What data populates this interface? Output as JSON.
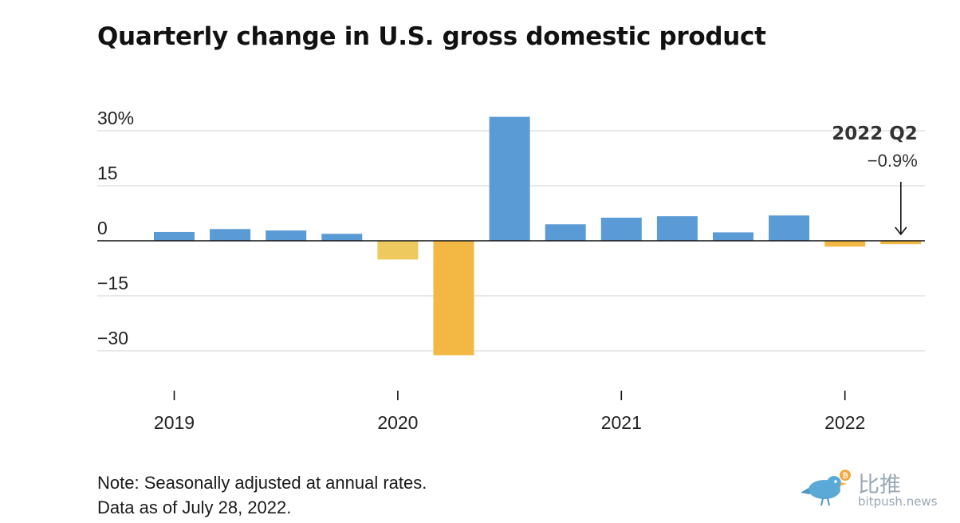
{
  "title": "Quarterly change in U.S. gross domestic product",
  "note_line1": "Note: Seasonally adjusted at annual rates.",
  "note_line2": "Data as of July 28, 2022.",
  "watermark": {
    "brand_text": "比推",
    "domain": "bitpush.news",
    "icon": "bird-bitcoin-icon"
  },
  "colors": {
    "positive": "#5b9bd5",
    "negative": "#f2b843",
    "negative_light": "#edc95e",
    "grid": "#d0d0d0",
    "zero_line": "#111111"
  },
  "chart_data": {
    "type": "bar",
    "title": "Quarterly change in U.S. gross domestic product",
    "categories": [
      "2019 Q1",
      "2019 Q2",
      "2019 Q3",
      "2019 Q4",
      "2020 Q1",
      "2020 Q2",
      "2020 Q3",
      "2020 Q4",
      "2021 Q1",
      "2021 Q2",
      "2021 Q3",
      "2021 Q4",
      "2022 Q1",
      "2022 Q2"
    ],
    "values": [
      2.4,
      3.2,
      2.8,
      1.9,
      -5.1,
      -31.2,
      33.8,
      4.5,
      6.3,
      6.7,
      2.3,
      6.9,
      -1.6,
      -0.9
    ],
    "ylim": [
      -30,
      30
    ],
    "yticks": [
      30,
      15,
      0,
      -15,
      -30
    ],
    "ytick_labels": [
      "30%",
      "15",
      "0",
      "−15",
      "−30"
    ],
    "xticks": [
      "2019",
      "2020",
      "2021",
      "2022"
    ],
    "grid": true,
    "annotation": {
      "category": "2022 Q2",
      "label": "2022 Q2",
      "value_label": "−0.9%"
    }
  }
}
